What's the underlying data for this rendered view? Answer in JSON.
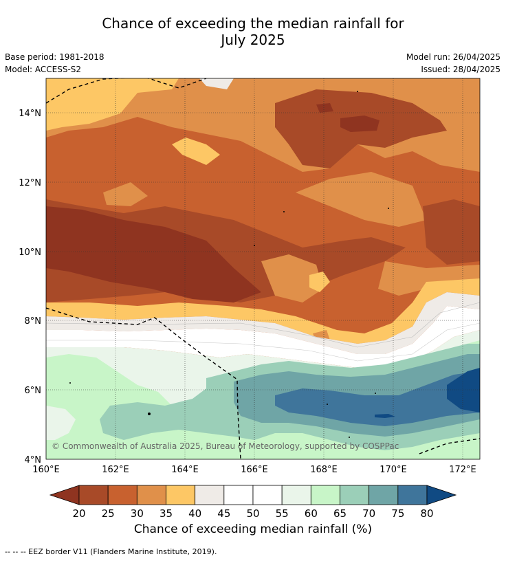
{
  "title_line1": "Chance of exceeding the median rainfall for",
  "title_line2": "July 2025",
  "meta": {
    "base_period": "Base period: 1981-2018",
    "model": "Model: ACCESS-S2",
    "model_run": "Model run: 26/04/2025",
    "issued": "Issued: 28/04/2025"
  },
  "map": {
    "lon_ticks": [
      "160°E",
      "162°E",
      "164°E",
      "166°E",
      "168°E",
      "170°E",
      "172°E"
    ],
    "lat_ticks": [
      "14°N",
      "12°N",
      "10°N",
      "8°N",
      "6°N",
      "4°N"
    ],
    "lon_range": [
      160,
      172.5
    ],
    "lat_range": [
      4,
      15
    ],
    "copyright": "© Commonwealth of Australia 2025, Bureau of Meteorology, supported by COSPPac"
  },
  "colorbar": {
    "labels": [
      "20",
      "25",
      "30",
      "35",
      "40",
      "45",
      "50",
      "55",
      "60",
      "65",
      "70",
      "75",
      "80"
    ],
    "colors": [
      "#a84a28",
      "#c8612f",
      "#e0904a",
      "#fdc765",
      "#efebe7",
      "#ffffff",
      "#ffffff",
      "#eaf5ea",
      "#c8f5c8",
      "#9bcfb8",
      "#6fa5a6",
      "#3f759b"
    ],
    "under_color": "#8f3420",
    "over_color": "#104a83",
    "label": "Chance of exceeding median rainfall (%)"
  },
  "footnote": "--  --  -- EEZ border V11 (Flanders Marine Institute, 2019)."
}
